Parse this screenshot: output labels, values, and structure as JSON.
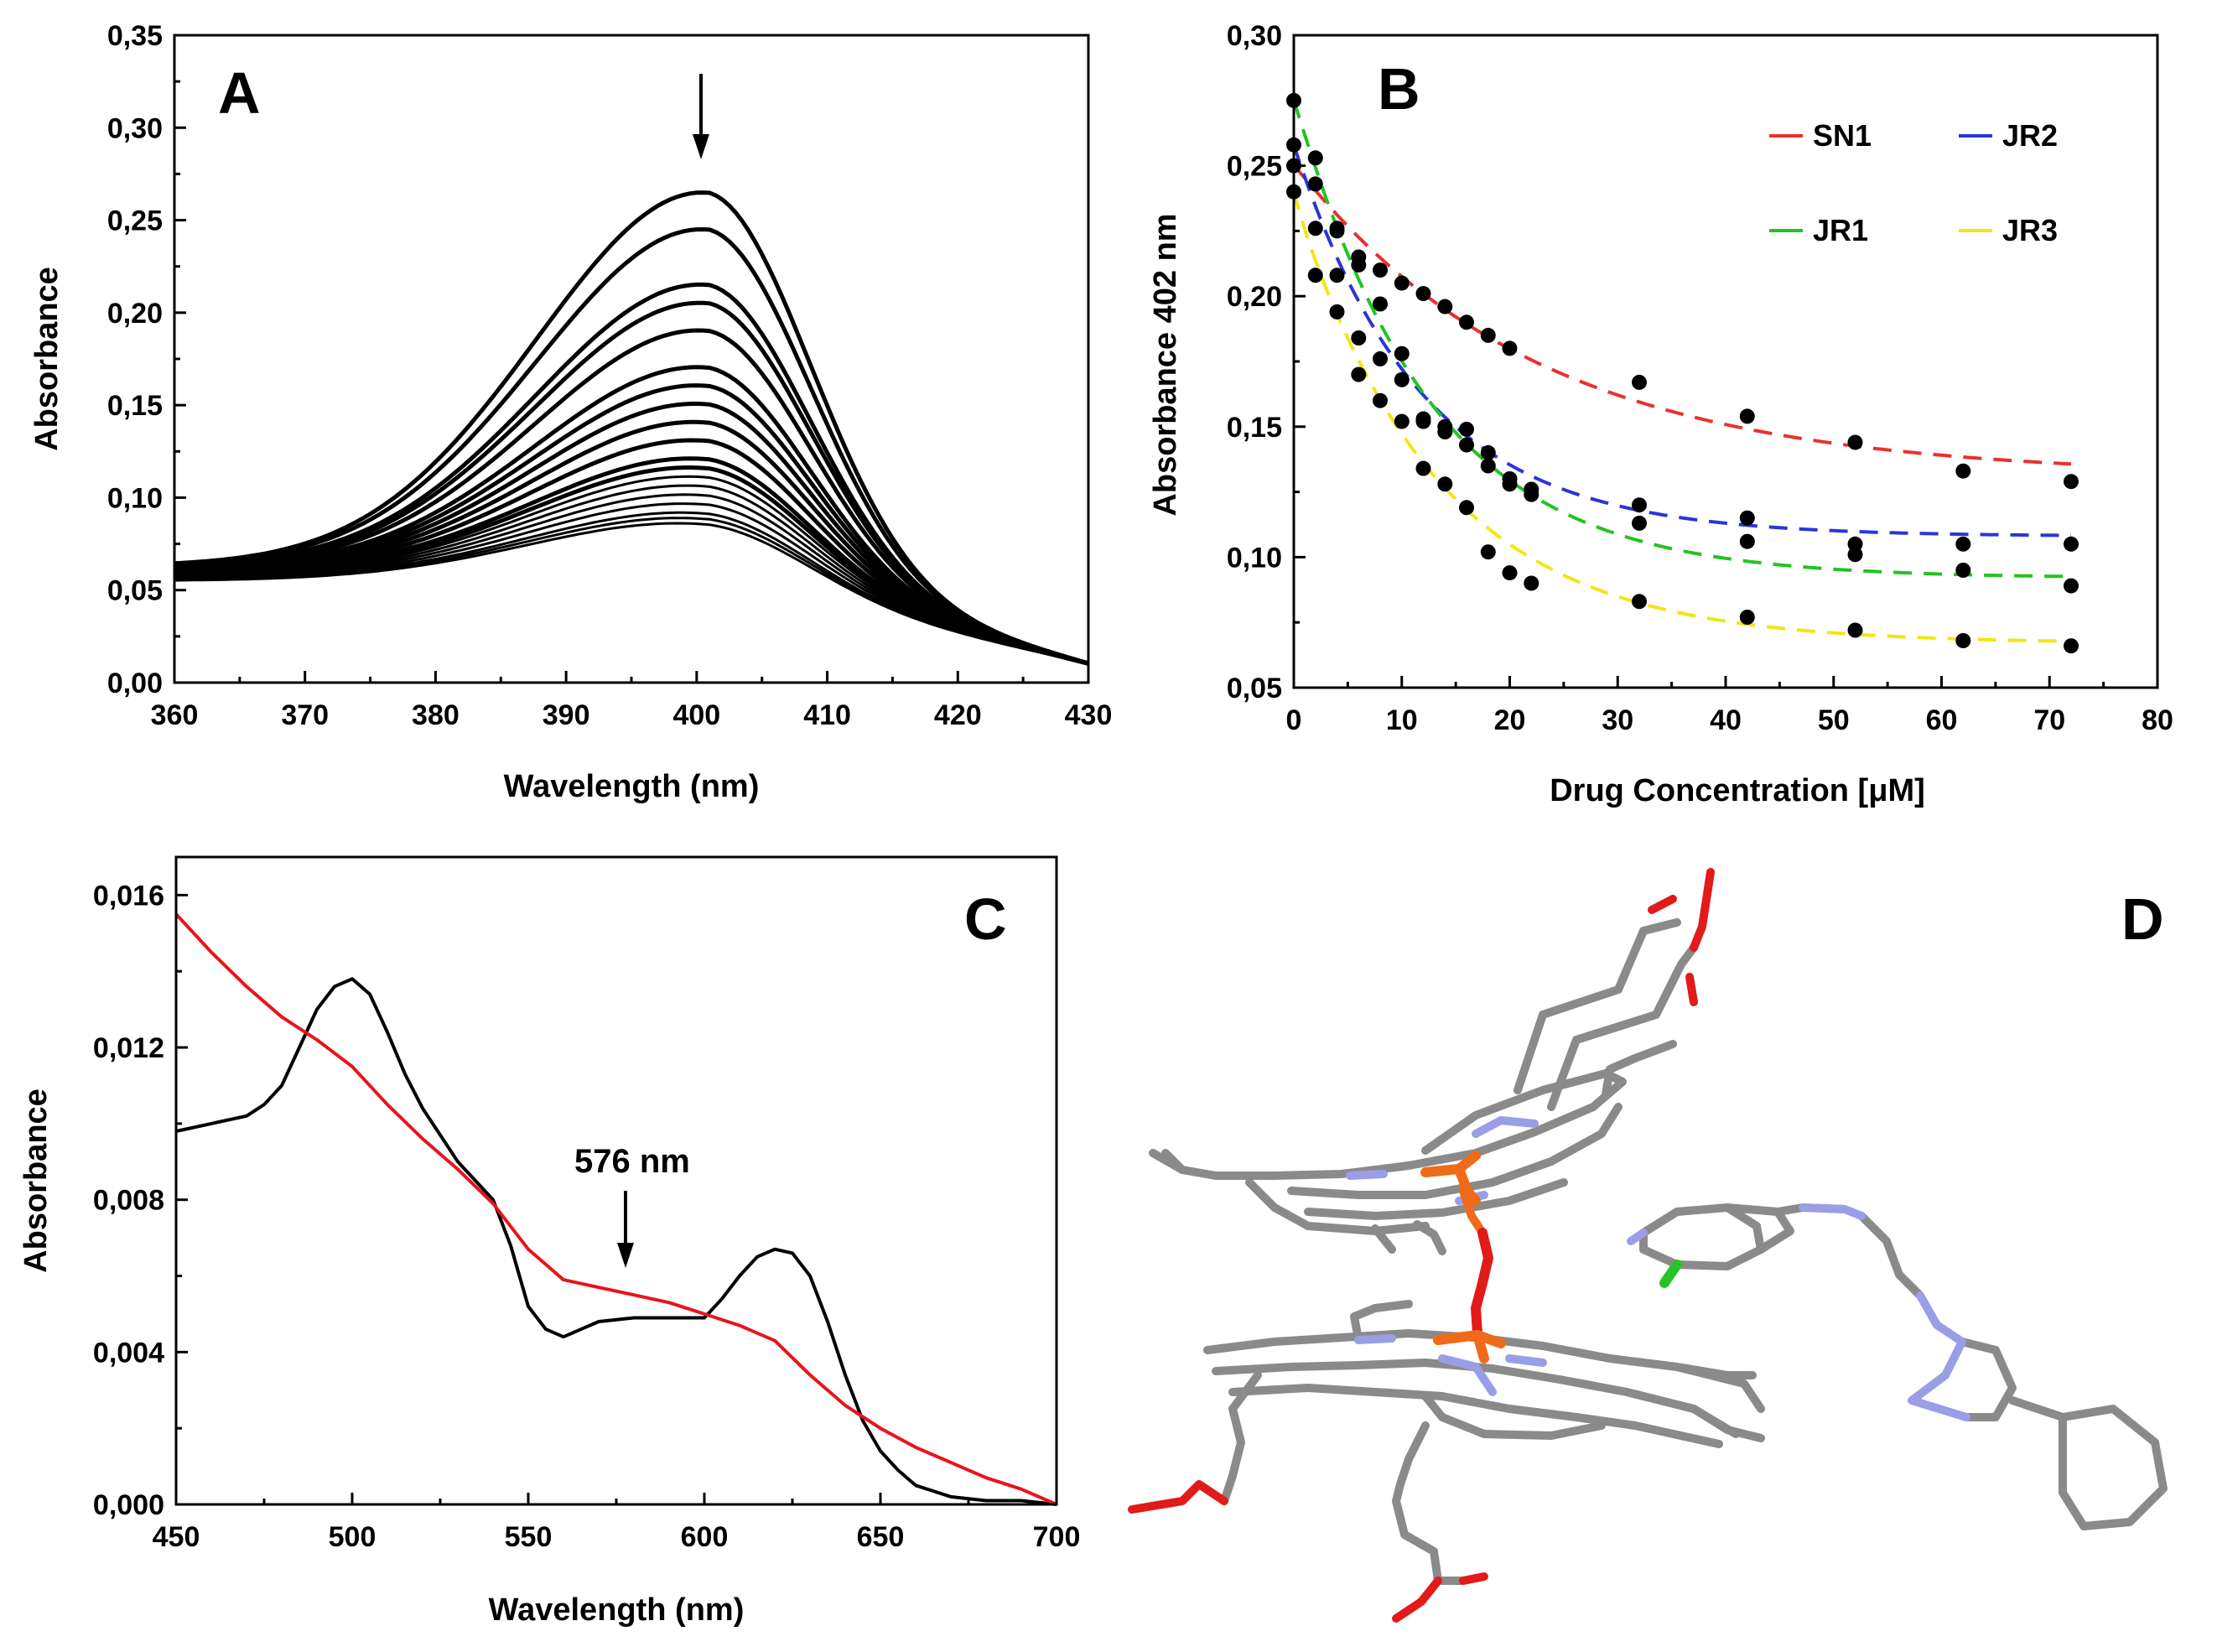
{
  "chart_data": [
    {
      "panel": "A",
      "type": "line",
      "title": "",
      "xlabel": "Wavelength (nm)",
      "ylabel": "Absorbance",
      "xlim": [
        360,
        430
      ],
      "ylim": [
        0.0,
        0.35
      ],
      "xticks": [
        360,
        370,
        380,
        390,
        400,
        410,
        420,
        430
      ],
      "xtick_labels": [
        "360",
        "370",
        "380",
        "390",
        "400",
        "410",
        "420",
        "430"
      ],
      "yticks": [
        0.0,
        0.05,
        0.1,
        0.15,
        0.2,
        0.25,
        0.3,
        0.35
      ],
      "ytick_labels": [
        "0,00",
        "0,05",
        "0,10",
        "0,15",
        "0,20",
        "0,25",
        "0,30",
        "0,35"
      ],
      "peak_wavelength": 401,
      "series_peak_absorbance": [
        0.275,
        0.255,
        0.225,
        0.215,
        0.2,
        0.18,
        0.17,
        0.16,
        0.15,
        0.14,
        0.13,
        0.125,
        0.12,
        0.115,
        0.11,
        0.105,
        0.1,
        0.097,
        0.094
      ],
      "baseline_at_360": 0.057,
      "value_at_430": 0.012,
      "annotation": "arrow pointing down at peak"
    },
    {
      "panel": "B",
      "type": "scatter",
      "title": "",
      "xlabel": "Drug Concentration [μM]",
      "ylabel": "Absorbance 402 nm",
      "xlim": [
        0,
        80
      ],
      "ylim": [
        0.05,
        0.3
      ],
      "xticks": [
        0,
        10,
        20,
        30,
        40,
        50,
        60,
        70,
        80
      ],
      "xtick_labels": [
        "0",
        "10",
        "20",
        "30",
        "40",
        "50",
        "60",
        "70",
        "80"
      ],
      "yticks": [
        0.05,
        0.1,
        0.15,
        0.2,
        0.25,
        0.3
      ],
      "ytick_labels": [
        "0,05",
        "0,10",
        "0,15",
        "0,20",
        "0,25",
        "0,30"
      ],
      "legend_position": "top-right",
      "series": [
        {
          "name": "SN1",
          "color": "#e8312f",
          "fit": {
            "a": 0.12,
            "b": 0.131,
            "k": 0.045
          },
          "points": [
            [
              0,
              0.25
            ],
            [
              2,
              0.243
            ],
            [
              4,
              0.225
            ],
            [
              6,
              0.215
            ],
            [
              8,
              0.21
            ],
            [
              10,
              0.205
            ],
            [
              12,
              0.201
            ],
            [
              14,
              0.196
            ],
            [
              16,
              0.19
            ],
            [
              18,
              0.185
            ],
            [
              20,
              0.18
            ],
            [
              32,
              0.167
            ],
            [
              42,
              0.154
            ],
            [
              52,
              0.144
            ],
            [
              62,
              0.133
            ],
            [
              72,
              0.129
            ]
          ]
        },
        {
          "name": "JR2",
          "color": "#2b35d8",
          "fit": {
            "a": 0.15,
            "b": 0.108,
            "k": 0.085
          },
          "points": [
            [
              0,
              0.258
            ],
            [
              2,
              0.226
            ],
            [
              4,
              0.208
            ],
            [
              6,
              0.184
            ],
            [
              8,
              0.176
            ],
            [
              10,
              0.168
            ],
            [
              12,
              0.153
            ],
            [
              14,
              0.148
            ],
            [
              16,
              0.143
            ],
            [
              18,
              0.135
            ],
            [
              20,
              0.13
            ],
            [
              22,
              0.126
            ],
            [
              32,
              0.113
            ],
            [
              42,
              0.115
            ],
            [
              52,
              0.105
            ],
            [
              62,
              0.105
            ],
            [
              72,
              0.105
            ]
          ]
        },
        {
          "name": "JR1",
          "color": "#22c322",
          "fit": {
            "a": 0.185,
            "b": 0.092,
            "k": 0.08
          },
          "points": [
            [
              0,
              0.275
            ],
            [
              2,
              0.253
            ],
            [
              4,
              0.226
            ],
            [
              6,
              0.212
            ],
            [
              8,
              0.197
            ],
            [
              10,
              0.178
            ],
            [
              12,
              0.152
            ],
            [
              14,
              0.15
            ],
            [
              16,
              0.149
            ],
            [
              18,
              0.14
            ],
            [
              20,
              0.128
            ],
            [
              22,
              0.124
            ],
            [
              32,
              0.12
            ],
            [
              42,
              0.106
            ],
            [
              52,
              0.101
            ],
            [
              62,
              0.095
            ],
            [
              72,
              0.089
            ]
          ]
        },
        {
          "name": "JR3",
          "color": "#f2e614",
          "fit": {
            "a": 0.17,
            "b": 0.067,
            "k": 0.075
          },
          "points": [
            [
              0,
              0.24
            ],
            [
              2,
              0.208
            ],
            [
              4,
              0.194
            ],
            [
              6,
              0.17
            ],
            [
              8,
              0.16
            ],
            [
              10,
              0.152
            ],
            [
              12,
              0.134
            ],
            [
              14,
              0.128
            ],
            [
              16,
              0.119
            ],
            [
              18,
              0.102
            ],
            [
              20,
              0.094
            ],
            [
              22,
              0.09
            ],
            [
              32,
              0.083
            ],
            [
              42,
              0.077
            ],
            [
              52,
              0.072
            ],
            [
              62,
              0.068
            ],
            [
              72,
              0.066
            ]
          ]
        }
      ]
    },
    {
      "panel": "C",
      "type": "line",
      "title": "",
      "xlabel": "Wavelength (nm)",
      "ylabel": "Absorbance",
      "xlim": [
        450,
        700
      ],
      "ylim": [
        0.0,
        0.017
      ],
      "xticks": [
        450,
        500,
        550,
        600,
        650,
        700
      ],
      "xtick_labels": [
        "450",
        "500",
        "550",
        "600",
        "650",
        "700"
      ],
      "yticks": [
        0.0,
        0.004,
        0.008,
        0.012,
        0.016
      ],
      "ytick_labels": [
        "0,000",
        "0,004",
        "0,008",
        "0,012",
        "0,016"
      ],
      "annotation": "576 nm",
      "annotation_x": 576,
      "series": [
        {
          "name": "black",
          "color": "#000000",
          "x": [
            450,
            460,
            470,
            475,
            480,
            485,
            490,
            495,
            500,
            505,
            510,
            515,
            520,
            525,
            530,
            535,
            540,
            545,
            550,
            555,
            560,
            565,
            570,
            580,
            590,
            600,
            605,
            610,
            615,
            620,
            625,
            630,
            635,
            640,
            645,
            650,
            655,
            660,
            670,
            680,
            690,
            700
          ],
          "y": [
            0.0098,
            0.01,
            0.0102,
            0.0105,
            0.011,
            0.012,
            0.013,
            0.0136,
            0.0138,
            0.0134,
            0.0124,
            0.0113,
            0.0104,
            0.0097,
            0.009,
            0.0085,
            0.008,
            0.0068,
            0.0052,
            0.0046,
            0.0044,
            0.0046,
            0.0048,
            0.0049,
            0.0049,
            0.0049,
            0.0054,
            0.006,
            0.0065,
            0.0067,
            0.0066,
            0.006,
            0.0048,
            0.0034,
            0.0022,
            0.0014,
            0.0009,
            0.0005,
            0.0002,
            0.0001,
            0.0001,
            0.0
          ]
        },
        {
          "name": "red",
          "color": "#e8141c",
          "x": [
            450,
            460,
            470,
            480,
            490,
            500,
            510,
            520,
            530,
            540,
            550,
            560,
            570,
            580,
            590,
            600,
            610,
            620,
            630,
            640,
            650,
            660,
            670,
            680,
            690,
            700
          ],
          "y": [
            0.0155,
            0.0145,
            0.0136,
            0.0128,
            0.0122,
            0.0115,
            0.0105,
            0.0096,
            0.0088,
            0.0079,
            0.0067,
            0.0059,
            0.0057,
            0.0055,
            0.0053,
            0.005,
            0.0047,
            0.0043,
            0.0034,
            0.0026,
            0.002,
            0.0015,
            0.0011,
            0.0007,
            0.0004,
            0.0
          ]
        }
      ]
    }
  ],
  "panels": {
    "a": {
      "letter": "A"
    },
    "b": {
      "letter": "B"
    },
    "c": {
      "letter": "C"
    },
    "d": {
      "letter": "D"
    }
  },
  "colors": {
    "carbon": "#8a8a8a",
    "nitrogen": "#9a9ee6",
    "oxygen": "#e11a1a",
    "iron": "#ef6b1a",
    "chlorine": "#27c427"
  }
}
